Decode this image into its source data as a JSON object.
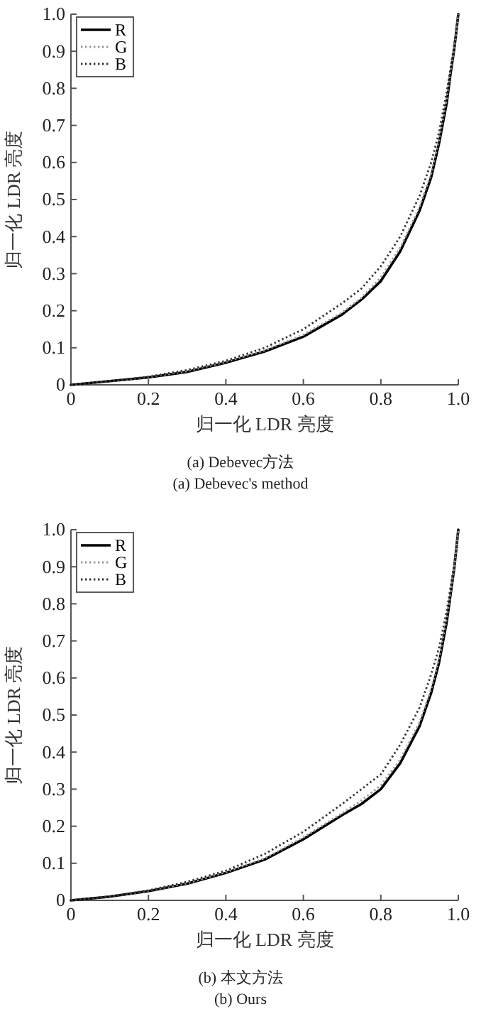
{
  "chart_data": [
    {
      "type": "line",
      "title": "(a) Debevec方法",
      "subtitle": "(a) Debevec's method",
      "xlabel": "归一化 LDR 亮度",
      "ylabel": "归一化 LDR 亮度",
      "xlim": [
        0,
        1
      ],
      "ylim": [
        0,
        1
      ],
      "xticks": [
        0,
        0.2,
        0.4,
        0.6,
        0.8,
        {
          "value": 1,
          "label": "1.0"
        }
      ],
      "yticks": [
        0,
        0.1,
        0.2,
        0.3,
        0.4,
        0.5,
        0.6,
        0.7,
        0.8,
        0.9,
        {
          "value": 1,
          "label": "1.0"
        }
      ],
      "grid": false,
      "legend": "top left",
      "series": [
        {
          "name": "R",
          "color": "#000000",
          "line_style": "solid",
          "x": [
            0,
            0.1,
            0.2,
            0.3,
            0.4,
            0.5,
            0.6,
            0.7,
            0.75,
            0.8,
            0.85,
            0.9,
            0.93,
            0.95,
            0.97,
            0.98,
            0.99,
            1
          ],
          "values": [
            0,
            0.01,
            0.02,
            0.035,
            0.06,
            0.09,
            0.13,
            0.19,
            0.23,
            0.28,
            0.36,
            0.47,
            0.56,
            0.65,
            0.76,
            0.84,
            0.91,
            1
          ]
        },
        {
          "name": "G",
          "color": "#9a9a9a",
          "line_style": "dotted",
          "x": [
            0,
            0.1,
            0.2,
            0.3,
            0.4,
            0.5,
            0.6,
            0.7,
            0.75,
            0.8,
            0.85,
            0.9,
            0.93,
            0.95,
            0.97,
            0.98,
            0.99,
            1
          ],
          "values": [
            0,
            0.01,
            0.021,
            0.037,
            0.062,
            0.093,
            0.135,
            0.195,
            0.235,
            0.29,
            0.37,
            0.48,
            0.57,
            0.66,
            0.77,
            0.85,
            0.91,
            1
          ]
        },
        {
          "name": "B",
          "color": "#333333",
          "line_style": "dotted",
          "x": [
            0,
            0.1,
            0.2,
            0.3,
            0.4,
            0.5,
            0.6,
            0.7,
            0.75,
            0.8,
            0.85,
            0.9,
            0.93,
            0.95,
            0.97,
            0.99,
            1
          ],
          "values": [
            0,
            0.01,
            0.022,
            0.04,
            0.065,
            0.1,
            0.15,
            0.22,
            0.26,
            0.32,
            0.4,
            0.51,
            0.6,
            0.68,
            0.79,
            0.92,
            1
          ]
        }
      ]
    },
    {
      "type": "line",
      "title": "(b) 本文方法",
      "subtitle": "(b) Ours",
      "xlabel": "归一化 LDR 亮度",
      "ylabel": "归一化 LDR 亮度",
      "xlim": [
        0,
        1
      ],
      "ylim": [
        0,
        1
      ],
      "xticks": [
        0,
        0.2,
        0.4,
        0.6,
        0.8,
        {
          "value": 1,
          "label": "1.0"
        }
      ],
      "yticks": [
        0,
        0.1,
        0.2,
        0.3,
        0.4,
        0.5,
        0.6,
        0.7,
        0.8,
        0.9,
        {
          "value": 1,
          "label": "1.0"
        }
      ],
      "grid": false,
      "legend": "top left",
      "series": [
        {
          "name": "R",
          "color": "#000000",
          "line_style": "solid",
          "x": [
            0,
            0.1,
            0.2,
            0.3,
            0.4,
            0.5,
            0.6,
            0.7,
            0.75,
            0.8,
            0.85,
            0.9,
            0.93,
            0.95,
            0.97,
            0.99,
            1
          ],
          "values": [
            0,
            0.01,
            0.025,
            0.045,
            0.074,
            0.11,
            0.165,
            0.23,
            0.26,
            0.3,
            0.37,
            0.47,
            0.56,
            0.64,
            0.75,
            0.9,
            1
          ]
        },
        {
          "name": "G",
          "color": "#9a9a9a",
          "line_style": "dotted",
          "x": [
            0,
            0.1,
            0.2,
            0.3,
            0.4,
            0.5,
            0.6,
            0.7,
            0.75,
            0.8,
            0.85,
            0.9,
            0.93,
            0.95,
            0.97,
            0.99,
            1
          ],
          "values": [
            0,
            0.01,
            0.026,
            0.046,
            0.076,
            0.113,
            0.17,
            0.235,
            0.27,
            0.31,
            0.38,
            0.48,
            0.57,
            0.65,
            0.76,
            0.9,
            1
          ]
        },
        {
          "name": "B",
          "color": "#333333",
          "line_style": "dotted",
          "x": [
            0,
            0.1,
            0.2,
            0.3,
            0.4,
            0.5,
            0.6,
            0.7,
            0.75,
            0.8,
            0.85,
            0.9,
            0.93,
            0.95,
            0.97,
            0.99,
            1
          ],
          "values": [
            0,
            0.01,
            0.027,
            0.05,
            0.08,
            0.125,
            0.185,
            0.26,
            0.3,
            0.34,
            0.42,
            0.52,
            0.61,
            0.68,
            0.78,
            0.91,
            1
          ]
        }
      ]
    }
  ]
}
